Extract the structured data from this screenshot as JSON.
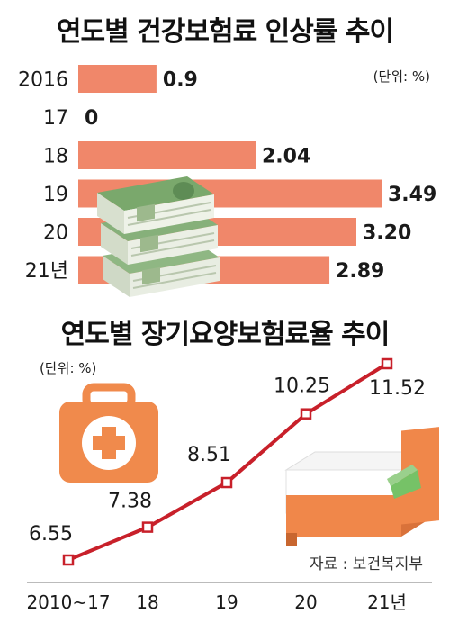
{
  "colors": {
    "bar": "#f0876a",
    "line": "#c8202a",
    "marker_fill": "#ffffff",
    "icon_orange": "#f08a4c"
  },
  "chart_data": [
    {
      "type": "bar",
      "title": "연도별 건강보험료 인상률 추이",
      "unit": "(단위: %)",
      "categories": [
        "2016",
        "17",
        "18",
        "19",
        "20",
        "21년"
      ],
      "values": [
        0.9,
        0,
        2.04,
        3.49,
        3.2,
        2.89
      ],
      "value_labels": [
        "0.9",
        "0",
        "2.04",
        "3.49",
        "3.20",
        "2.89"
      ],
      "orientation": "horizontal",
      "xlim": [
        0,
        4.2
      ],
      "grid": false
    },
    {
      "type": "line",
      "title": "연도별 장기요양보험료율 추이",
      "unit": "(단위: %)",
      "categories": [
        "2010~17",
        "18",
        "19",
        "20",
        "21년"
      ],
      "values": [
        6.55,
        7.38,
        8.51,
        10.25,
        11.52
      ],
      "value_labels": [
        "6.55",
        "7.38",
        "8.51",
        "10.25",
        "11.52"
      ],
      "ylim": [
        6,
        12
      ],
      "grid": false
    }
  ],
  "source": "자료 : 보건복지부",
  "icons": [
    "money-bundle-icon",
    "first-aid-kit-icon",
    "bed-icon"
  ]
}
